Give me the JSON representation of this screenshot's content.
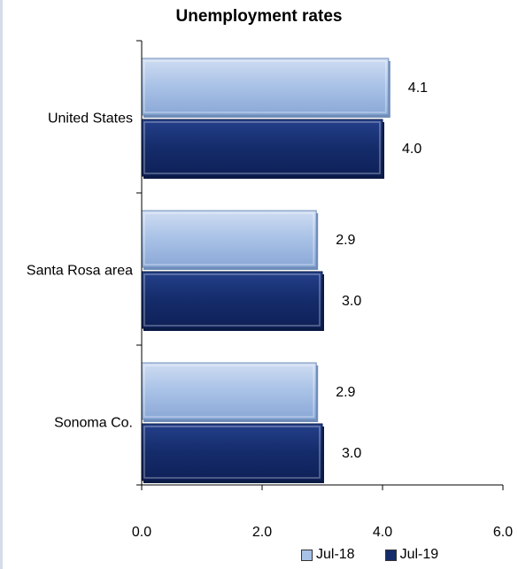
{
  "chart_data": {
    "type": "bar",
    "orientation": "horizontal",
    "title": "Unemployment rates",
    "categories": [
      "United States",
      "Santa Rosa area",
      "Sonoma Co."
    ],
    "series": [
      {
        "name": "Jul-18",
        "values": [
          4.1,
          2.9,
          2.9
        ],
        "labels": [
          "4.1",
          "2.9",
          "2.9"
        ],
        "color": "#a8c1e6",
        "shade": "#6f8db8"
      },
      {
        "name": "Jul-19",
        "values": [
          4.0,
          3.0,
          3.0
        ],
        "labels": [
          "4.0",
          "3.0",
          "3.0"
        ],
        "color": "#152c6b",
        "shade": "#0a1a44"
      }
    ],
    "xlim": [
      0,
      6
    ],
    "xticks": [
      "0.0",
      "2.0",
      "4.0",
      "6.0"
    ],
    "grid": false,
    "legend": "bottom-right"
  }
}
